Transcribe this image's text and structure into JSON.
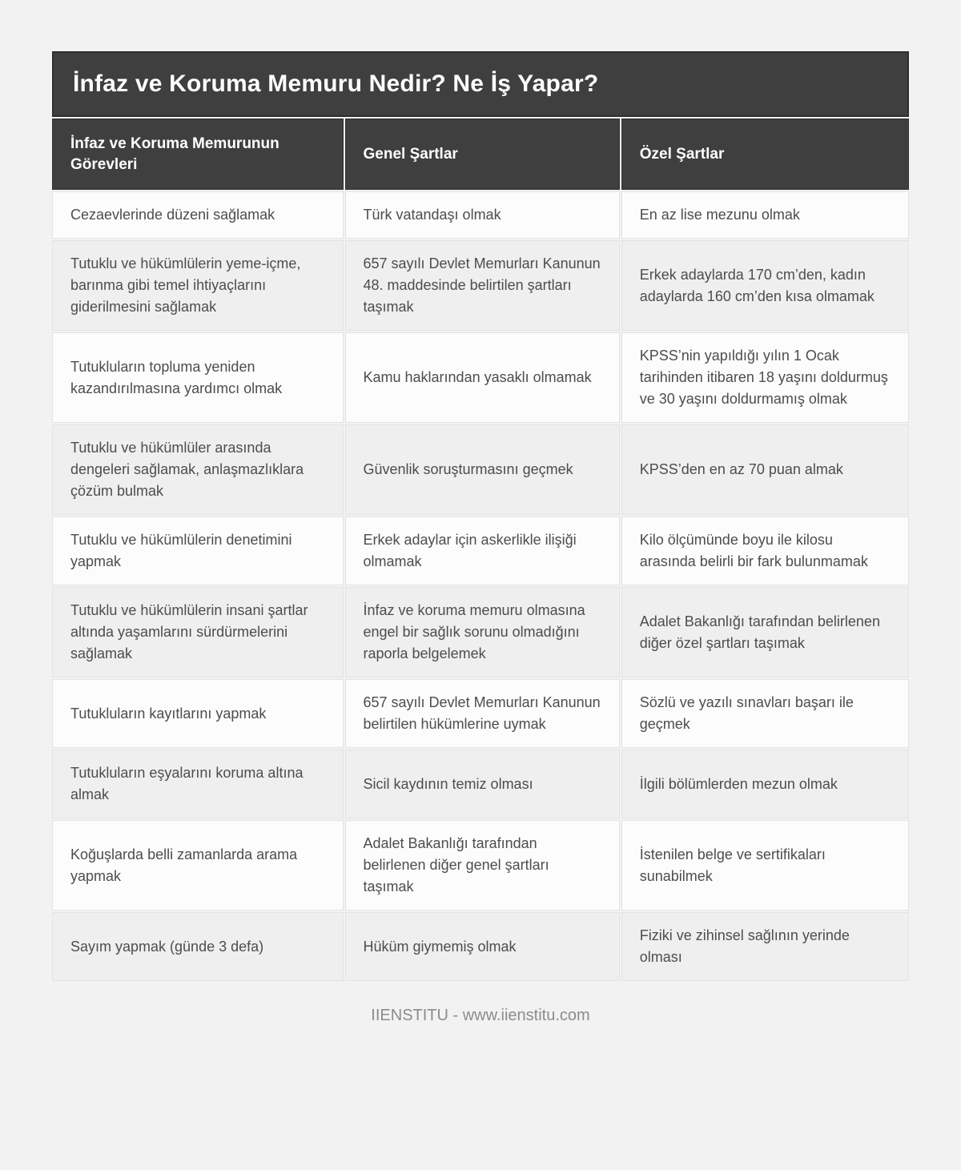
{
  "page": {
    "background_color": "#f2f2f2",
    "header_bg_color": "#3f3f3f",
    "odd_row_color": "#fcfcfc",
    "even_row_color": "#efefef",
    "body_text_color": "#4d4d4d"
  },
  "table": {
    "title": "İnfaz ve Koruma Memuru Nedir? Ne İş Yapar?",
    "columns": [
      "İnfaz ve Koruma Memurunun Görevleri",
      "Genel Şartlar",
      "Özel Şartlar"
    ],
    "rows": [
      [
        "Cezaevlerinde düzeni sağlamak",
        "Türk vatandaşı olmak",
        "En az lise mezunu olmak"
      ],
      [
        "Tutuklu ve hükümlülerin yeme-içme, barınma gibi temel ihtiyaçlarını giderilmesini sağlamak",
        "657 sayılı Devlet Memurları Kanunun 48. maddesinde belirtilen şartları taşımak",
        "Erkek adaylarda 170 cm’den, kadın adaylarda 160 cm’den kısa olmamak"
      ],
      [
        "Tutukluların topluma yeniden kazandırılmasına yardımcı olmak",
        "Kamu haklarından yasaklı olmamak",
        "KPSS’nin yapıldığı yılın 1 Ocak tarihinden itibaren 18 yaşını doldurmuş ve 30 yaşını doldurmamış olmak"
      ],
      [
        "Tutuklu ve hükümlüler arasında dengeleri sağlamak, anlaşmazlıklara çözüm bulmak",
        "Güvenlik soruşturmasını geçmek",
        "KPSS’den en az 70 puan almak"
      ],
      [
        "Tutuklu ve hükümlülerin denetimini yapmak",
        "Erkek adaylar için askerlikle ilişiği olmamak",
        "Kilo ölçümünde boyu ile kilosu arasında belirli bir fark bulunmamak"
      ],
      [
        "Tutuklu ve hükümlülerin insani şartlar altında yaşamlarını sürdürmelerini sağlamak",
        "İnfaz ve koruma memuru olmasına engel bir sağlık sorunu olmadığını raporla belgelemek",
        "Adalet Bakanlığı tarafından belirlenen diğer özel şartları taşımak"
      ],
      [
        "Tutukluların kayıtlarını yapmak",
        "657 sayılı Devlet Memurları Kanunun belirtilen hükümlerine uymak",
        "Sözlü ve yazılı sınavları başarı ile geçmek"
      ],
      [
        "Tutukluların eşyalarını koruma altına almak",
        "Sicil kaydının temiz olması",
        "İlgili bölümlerden mezun olmak"
      ],
      [
        "Koğuşlarda belli zamanlarda arama yapmak",
        "Adalet Bakanlığı tarafından belirlenen diğer genel şartları taşımak",
        "İstenilen belge ve sertifikaları sunabilmek"
      ],
      [
        "Sayım yapmak (günde 3 defa)",
        "Hüküm giymemiş olmak",
        "Fiziki ve zihinsel sağlının yerinde olması"
      ]
    ]
  },
  "footer": {
    "text": "IIENSTITU - www.iienstitu.com"
  }
}
